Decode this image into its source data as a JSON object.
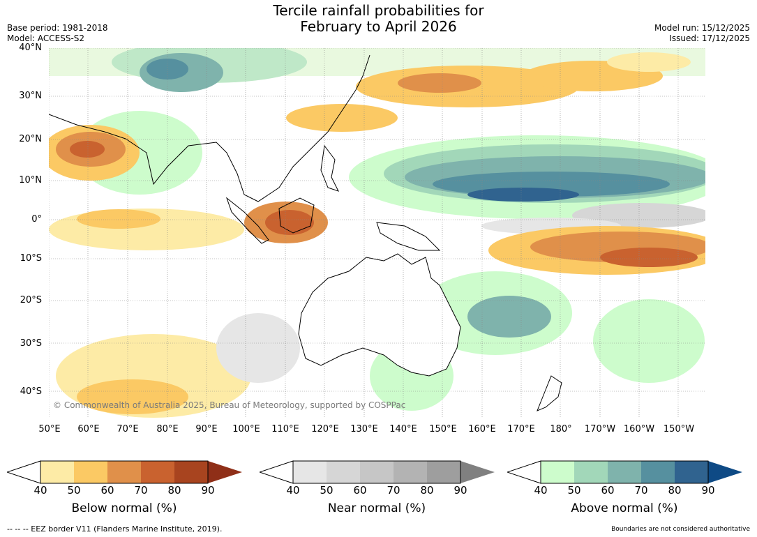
{
  "title": {
    "line1": "Tercile rainfall probabilities for",
    "line2": "February to April 2026"
  },
  "meta_left": {
    "base_period": "Base period: 1981-2018",
    "model": "Model: ACCESS-S2"
  },
  "meta_right": {
    "model_run": "Model run: 15/12/2025",
    "issued": "Issued: 17/12/2025"
  },
  "map": {
    "lat_labels": [
      "40°N",
      "30°N",
      "20°N",
      "10°N",
      "0°",
      "10°S",
      "20°S",
      "30°S",
      "40°S"
    ],
    "lon_labels": [
      "50°E",
      "60°E",
      "70°E",
      "80°E",
      "90°E",
      "100°E",
      "110°E",
      "120°E",
      "130°E",
      "140°E",
      "150°E",
      "160°E",
      "170°E",
      "180°",
      "170°W",
      "160°W",
      "150°W"
    ],
    "copyright": "© Commonwealth of Australia 2025, Bureau of Meteorology, supported by COSPPac"
  },
  "colorbars": [
    {
      "label": "Below normal (%)",
      "ticks": [
        "40",
        "50",
        "60",
        "70",
        "80",
        "90"
      ],
      "colors": [
        "#fdeba6",
        "#fbc964",
        "#e0904a",
        "#c9622f",
        "#a8441f"
      ],
      "extend_color": "#8f2f18"
    },
    {
      "label": "Near normal (%)",
      "ticks": [
        "40",
        "50",
        "60",
        "70",
        "80",
        "90"
      ],
      "colors": [
        "#e6e6e6",
        "#d6d6d6",
        "#c6c6c6",
        "#b3b3b3",
        "#9e9e9e"
      ],
      "extend_color": "#808080"
    },
    {
      "label": "Above normal (%)",
      "ticks": [
        "40",
        "50",
        "60",
        "70",
        "80",
        "90"
      ],
      "colors": [
        "#cdfccc",
        "#a2d7b9",
        "#7fb3ac",
        "#56909f",
        "#30638f"
      ],
      "extend_color": "#0e4a85"
    }
  ],
  "footer": {
    "eez": "--  --  -- EEZ border V11 (Flanders Marine Institute, 2019).",
    "disclaimer": "Boundaries are not considered authoritative"
  }
}
